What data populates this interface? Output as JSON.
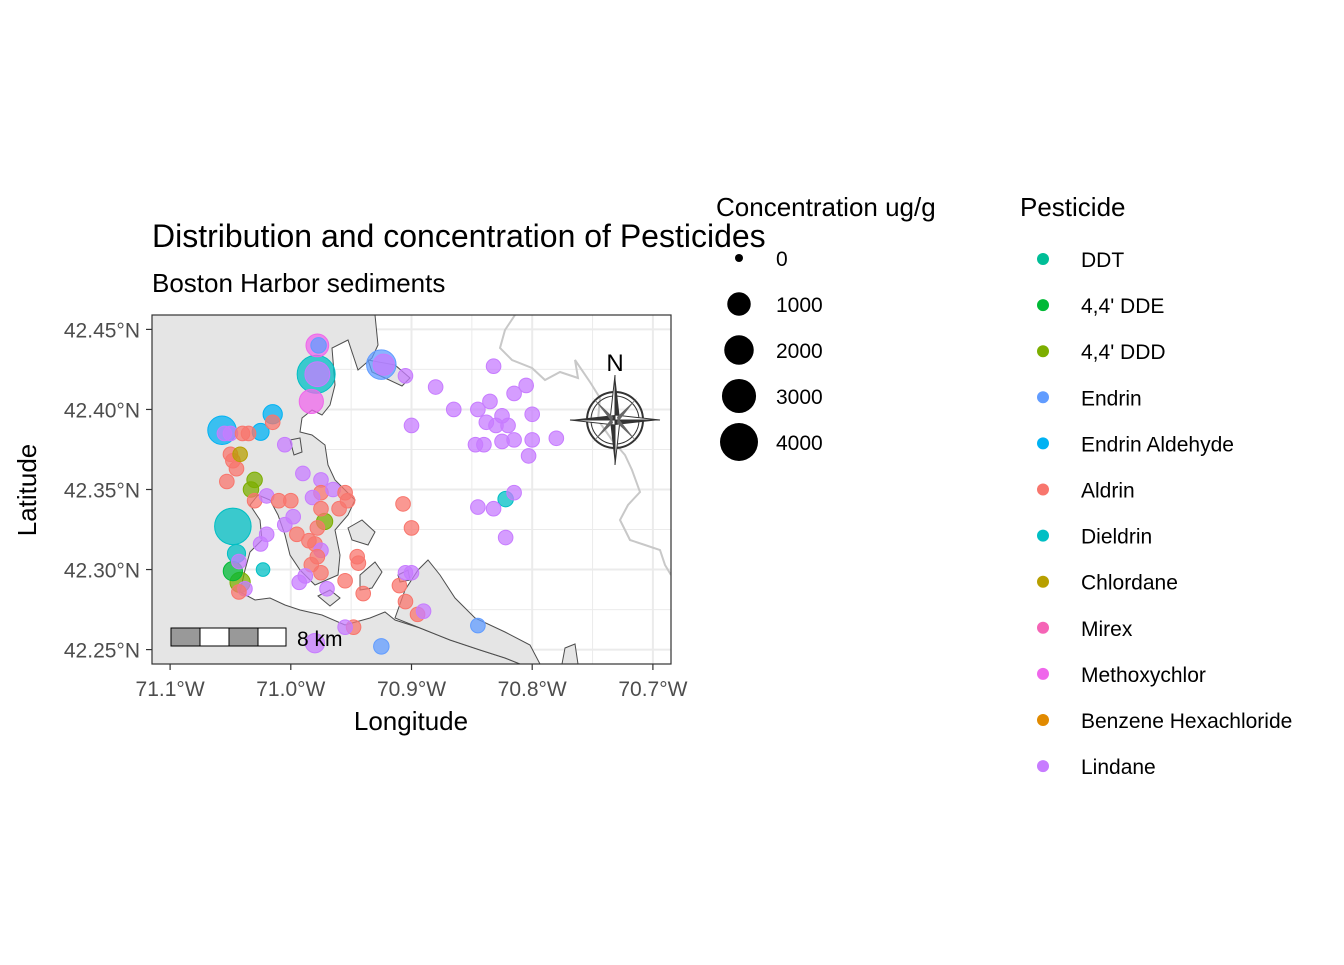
{
  "title": "Distribution and concentration of Pesticides",
  "subtitle": "Boston Harbor sediments",
  "x_axis": {
    "label": "Longitude",
    "ticks": [
      {
        "value": -71.1,
        "label": "71.1°W"
      },
      {
        "value": -71.0,
        "label": "71.0°W"
      },
      {
        "value": -70.9,
        "label": "70.9°W"
      },
      {
        "value": -70.8,
        "label": "70.8°W"
      },
      {
        "value": -70.7,
        "label": "70.7°W"
      }
    ],
    "range": [
      -71.115,
      -70.685
    ]
  },
  "y_axis": {
    "label": "Latitude",
    "ticks": [
      {
        "value": 42.25,
        "label": "42.25°N"
      },
      {
        "value": 42.3,
        "label": "42.30°N"
      },
      {
        "value": 42.35,
        "label": "42.35°N"
      },
      {
        "value": 42.4,
        "label": "42.40°N"
      },
      {
        "value": 42.45,
        "label": "42.45°N"
      }
    ],
    "range": [
      42.241,
      42.459
    ]
  },
  "scale_bar": {
    "label": "8 km"
  },
  "north_arrow": {
    "label": "N"
  },
  "legend_size": {
    "title": "Concentration ug/g",
    "entries": [
      {
        "label": "0",
        "value": 0
      },
      {
        "label": "1000",
        "value": 1000
      },
      {
        "label": "2000",
        "value": 2000
      },
      {
        "label": "3000",
        "value": 3000
      },
      {
        "label": "4000",
        "value": 4000
      }
    ]
  },
  "legend_color": {
    "title": "Pesticide",
    "entries": [
      {
        "label": "DDT",
        "color": "#00BE97"
      },
      {
        "label": "4,4' DDE",
        "color": "#00B936"
      },
      {
        "label": "4,4' DDD",
        "color": "#7CAE00"
      },
      {
        "label": "Endrin",
        "color": "#619CFF"
      },
      {
        "label": "Endrin Aldehyde",
        "color": "#00B2F3"
      },
      {
        "label": "Aldrin",
        "color": "#F8766D"
      },
      {
        "label": "Dieldrin",
        "color": "#00BFC4"
      },
      {
        "label": "Chlordane",
        "color": "#B79F00"
      },
      {
        "label": "Mirex",
        "color": "#F564B6"
      },
      {
        "label": "Methoxychlor",
        "color": "#EF67EB"
      },
      {
        "label": "Benzene Hexachloride",
        "color": "#E18A00"
      },
      {
        "label": "Lindane",
        "color": "#C77CFF"
      }
    ]
  },
  "chart_data": {
    "type": "scatter",
    "xlabel": "Longitude",
    "ylabel": "Latitude",
    "xlim": [
      -71.115,
      -70.685
    ],
    "ylim": [
      42.241,
      42.459
    ],
    "grid": true,
    "points": [
      {
        "lon": -70.979,
        "lat": 42.422,
        "value": 4000,
        "pesticide": "Dieldrin"
      },
      {
        "lon": -70.978,
        "lat": 42.422,
        "value": 1200,
        "pesticide": "Lindane"
      },
      {
        "lon": -71.048,
        "lat": 42.327,
        "value": 3600,
        "pesticide": "Dieldrin"
      },
      {
        "lon": -71.057,
        "lat": 42.387,
        "value": 1800,
        "pesticide": "Endrin Aldehyde"
      },
      {
        "lon": -70.925,
        "lat": 42.428,
        "value": 2000,
        "pesticide": "Endrin"
      },
      {
        "lon": -70.923,
        "lat": 42.428,
        "value": 700,
        "pesticide": "Lindane"
      },
      {
        "lon": -70.983,
        "lat": 42.405,
        "value": 1100,
        "pesticide": "Methoxychlor"
      },
      {
        "lon": -70.978,
        "lat": 42.44,
        "value": 900,
        "pesticide": "Methoxychlor"
      },
      {
        "lon": -70.977,
        "lat": 42.44,
        "value": 200,
        "pesticide": "Endrin"
      },
      {
        "lon": -71.015,
        "lat": 42.397,
        "value": 500,
        "pesticide": "Endrin Aldehyde"
      },
      {
        "lon": -71.025,
        "lat": 42.386,
        "value": 300,
        "pesticide": "Endrin Aldehyde"
      },
      {
        "lon": -71.045,
        "lat": 42.31,
        "value": 400,
        "pesticide": "Dieldrin"
      },
      {
        "lon": -71.048,
        "lat": 42.299,
        "value": 500,
        "pesticide": "4,4' DDE"
      },
      {
        "lon": -71.042,
        "lat": 42.292,
        "value": 600,
        "pesticide": "4,4' DDD"
      },
      {
        "lon": -71.055,
        "lat": 42.385,
        "value": 150,
        "pesticide": "Lindane"
      },
      {
        "lon": -71.05,
        "lat": 42.385,
        "value": 150,
        "pesticide": "Lindane"
      },
      {
        "lon": -71.04,
        "lat": 42.385,
        "value": 150,
        "pesticide": "Aldrin"
      },
      {
        "lon": -71.035,
        "lat": 42.385,
        "value": 150,
        "pesticide": "Aldrin"
      },
      {
        "lon": -71.015,
        "lat": 42.392,
        "value": 150,
        "pesticide": "Aldrin"
      },
      {
        "lon": -71.005,
        "lat": 42.378,
        "value": 150,
        "pesticide": "Lindane"
      },
      {
        "lon": -71.05,
        "lat": 42.372,
        "value": 150,
        "pesticide": "Aldrin"
      },
      {
        "lon": -71.048,
        "lat": 42.368,
        "value": 150,
        "pesticide": "Aldrin"
      },
      {
        "lon": -71.045,
        "lat": 42.363,
        "value": 150,
        "pesticide": "Aldrin"
      },
      {
        "lon": -71.042,
        "lat": 42.372,
        "value": 150,
        "pesticide": "Chlordane"
      },
      {
        "lon": -71.053,
        "lat": 42.355,
        "value": 150,
        "pesticide": "Aldrin"
      },
      {
        "lon": -71.03,
        "lat": 42.356,
        "value": 200,
        "pesticide": "4,4' DDD"
      },
      {
        "lon": -71.033,
        "lat": 42.35,
        "value": 200,
        "pesticide": "4,4' DDD"
      },
      {
        "lon": -71.03,
        "lat": 42.343,
        "value": 150,
        "pesticide": "Aldrin"
      },
      {
        "lon": -71.02,
        "lat": 42.346,
        "value": 150,
        "pesticide": "Lindane"
      },
      {
        "lon": -71.01,
        "lat": 42.343,
        "value": 150,
        "pesticide": "Aldrin"
      },
      {
        "lon": -71.0,
        "lat": 42.343,
        "value": 150,
        "pesticide": "Aldrin"
      },
      {
        "lon": -70.99,
        "lat": 42.36,
        "value": 150,
        "pesticide": "Lindane"
      },
      {
        "lon": -70.975,
        "lat": 42.356,
        "value": 150,
        "pesticide": "Lindane"
      },
      {
        "lon": -70.975,
        "lat": 42.348,
        "value": 150,
        "pesticide": "Aldrin"
      },
      {
        "lon": -70.965,
        "lat": 42.35,
        "value": 150,
        "pesticide": "Lindane"
      },
      {
        "lon": -70.955,
        "lat": 42.348,
        "value": 150,
        "pesticide": "Aldrin"
      },
      {
        "lon": -70.953,
        "lat": 42.343,
        "value": 150,
        "pesticide": "Aldrin"
      },
      {
        "lon": -70.982,
        "lat": 42.345,
        "value": 150,
        "pesticide": "Lindane"
      },
      {
        "lon": -70.975,
        "lat": 42.338,
        "value": 150,
        "pesticide": "Aldrin"
      },
      {
        "lon": -70.96,
        "lat": 42.338,
        "value": 150,
        "pesticide": "Aldrin"
      },
      {
        "lon": -70.998,
        "lat": 42.333,
        "value": 150,
        "pesticide": "Lindane"
      },
      {
        "lon": -71.005,
        "lat": 42.328,
        "value": 150,
        "pesticide": "Lindane"
      },
      {
        "lon": -70.972,
        "lat": 42.33,
        "value": 250,
        "pesticide": "4,4' DDD"
      },
      {
        "lon": -70.978,
        "lat": 42.326,
        "value": 150,
        "pesticide": "Aldrin"
      },
      {
        "lon": -70.995,
        "lat": 42.322,
        "value": 150,
        "pesticide": "Aldrin"
      },
      {
        "lon": -71.025,
        "lat": 42.316,
        "value": 150,
        "pesticide": "Lindane"
      },
      {
        "lon": -71.02,
        "lat": 42.322,
        "value": 150,
        "pesticide": "Lindane"
      },
      {
        "lon": -70.985,
        "lat": 42.318,
        "value": 150,
        "pesticide": "Aldrin"
      },
      {
        "lon": -70.98,
        "lat": 42.316,
        "value": 150,
        "pesticide": "Aldrin"
      },
      {
        "lon": -70.975,
        "lat": 42.312,
        "value": 150,
        "pesticide": "Lindane"
      },
      {
        "lon": -70.978,
        "lat": 42.308,
        "value": 150,
        "pesticide": "Aldrin"
      },
      {
        "lon": -70.983,
        "lat": 42.303,
        "value": 150,
        "pesticide": "Aldrin"
      },
      {
        "lon": -70.975,
        "lat": 42.298,
        "value": 150,
        "pesticide": "Aldrin"
      },
      {
        "lon": -70.988,
        "lat": 42.296,
        "value": 150,
        "pesticide": "Lindane"
      },
      {
        "lon": -70.993,
        "lat": 42.292,
        "value": 150,
        "pesticide": "Lindane"
      },
      {
        "lon": -71.043,
        "lat": 42.305,
        "value": 150,
        "pesticide": "Lindane"
      },
      {
        "lon": -71.023,
        "lat": 42.3,
        "value": 100,
        "pesticide": "Dieldrin"
      },
      {
        "lon": -71.038,
        "lat": 42.288,
        "value": 150,
        "pesticide": "Lindane"
      },
      {
        "lon": -71.043,
        "lat": 42.286,
        "value": 150,
        "pesticide": "Aldrin"
      },
      {
        "lon": -70.97,
        "lat": 42.288,
        "value": 150,
        "pesticide": "Lindane"
      },
      {
        "lon": -70.955,
        "lat": 42.293,
        "value": 150,
        "pesticide": "Aldrin"
      },
      {
        "lon": -70.945,
        "lat": 42.308,
        "value": 150,
        "pesticide": "Aldrin"
      },
      {
        "lon": -70.944,
        "lat": 42.304,
        "value": 150,
        "pesticide": "Aldrin"
      },
      {
        "lon": -70.94,
        "lat": 42.285,
        "value": 150,
        "pesticide": "Aldrin"
      },
      {
        "lon": -70.948,
        "lat": 42.264,
        "value": 150,
        "pesticide": "Aldrin"
      },
      {
        "lon": -70.955,
        "lat": 42.264,
        "value": 150,
        "pesticide": "Lindane"
      },
      {
        "lon": -70.925,
        "lat": 42.252,
        "value": 200,
        "pesticide": "Endrin"
      },
      {
        "lon": -70.98,
        "lat": 42.254,
        "value": 500,
        "pesticide": "Lindane"
      },
      {
        "lon": -70.905,
        "lat": 42.28,
        "value": 150,
        "pesticide": "Aldrin"
      },
      {
        "lon": -70.895,
        "lat": 42.272,
        "value": 150,
        "pesticide": "Aldrin"
      },
      {
        "lon": -70.89,
        "lat": 42.274,
        "value": 150,
        "pesticide": "Lindane"
      },
      {
        "lon": -70.91,
        "lat": 42.29,
        "value": 150,
        "pesticide": "Aldrin"
      },
      {
        "lon": -70.905,
        "lat": 42.298,
        "value": 150,
        "pesticide": "Lindane"
      },
      {
        "lon": -70.9,
        "lat": 42.298,
        "value": 150,
        "pesticide": "Lindane"
      },
      {
        "lon": -70.845,
        "lat": 42.265,
        "value": 150,
        "pesticide": "Endrin"
      },
      {
        "lon": -70.9,
        "lat": 42.326,
        "value": 150,
        "pesticide": "Aldrin"
      },
      {
        "lon": -70.907,
        "lat": 42.341,
        "value": 150,
        "pesticide": "Aldrin"
      },
      {
        "lon": -70.9,
        "lat": 42.39,
        "value": 150,
        "pesticide": "Lindane"
      },
      {
        "lon": -70.905,
        "lat": 42.421,
        "value": 150,
        "pesticide": "Lindane"
      },
      {
        "lon": -70.88,
        "lat": 42.414,
        "value": 150,
        "pesticide": "Lindane"
      },
      {
        "lon": -70.865,
        "lat": 42.4,
        "value": 150,
        "pesticide": "Lindane"
      },
      {
        "lon": -70.845,
        "lat": 42.4,
        "value": 150,
        "pesticide": "Lindane"
      },
      {
        "lon": -70.835,
        "lat": 42.405,
        "value": 150,
        "pesticide": "Lindane"
      },
      {
        "lon": -70.832,
        "lat": 42.427,
        "value": 150,
        "pesticide": "Lindane"
      },
      {
        "lon": -70.815,
        "lat": 42.41,
        "value": 150,
        "pesticide": "Lindane"
      },
      {
        "lon": -70.805,
        "lat": 42.415,
        "value": 150,
        "pesticide": "Lindane"
      },
      {
        "lon": -70.8,
        "lat": 42.397,
        "value": 150,
        "pesticide": "Lindane"
      },
      {
        "lon": -70.825,
        "lat": 42.396,
        "value": 150,
        "pesticide": "Lindane"
      },
      {
        "lon": -70.838,
        "lat": 42.392,
        "value": 150,
        "pesticide": "Lindane"
      },
      {
        "lon": -70.83,
        "lat": 42.39,
        "value": 150,
        "pesticide": "Lindane"
      },
      {
        "lon": -70.82,
        "lat": 42.39,
        "value": 150,
        "pesticide": "Lindane"
      },
      {
        "lon": -70.815,
        "lat": 42.381,
        "value": 150,
        "pesticide": "Lindane"
      },
      {
        "lon": -70.8,
        "lat": 42.381,
        "value": 150,
        "pesticide": "Lindane"
      },
      {
        "lon": -70.78,
        "lat": 42.382,
        "value": 150,
        "pesticide": "Lindane"
      },
      {
        "lon": -70.847,
        "lat": 42.378,
        "value": 150,
        "pesticide": "Lindane"
      },
      {
        "lon": -70.84,
        "lat": 42.378,
        "value": 150,
        "pesticide": "Lindane"
      },
      {
        "lon": -70.803,
        "lat": 42.371,
        "value": 150,
        "pesticide": "Lindane"
      },
      {
        "lon": -70.825,
        "lat": 42.38,
        "value": 150,
        "pesticide": "Lindane"
      },
      {
        "lon": -70.815,
        "lat": 42.348,
        "value": 150,
        "pesticide": "Lindane"
      },
      {
        "lon": -70.822,
        "lat": 42.344,
        "value": 200,
        "pesticide": "Dieldrin"
      },
      {
        "lon": -70.845,
        "lat": 42.339,
        "value": 150,
        "pesticide": "Lindane"
      },
      {
        "lon": -70.832,
        "lat": 42.338,
        "value": 150,
        "pesticide": "Lindane"
      },
      {
        "lon": -70.822,
        "lat": 42.32,
        "value": 150,
        "pesticide": "Lindane"
      }
    ]
  }
}
